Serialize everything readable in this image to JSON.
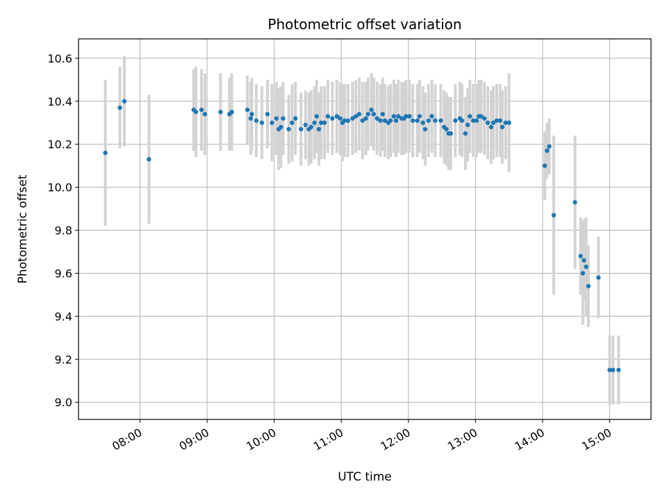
{
  "chart_data": {
    "type": "scatter",
    "title": "Photometric offset variation",
    "xlabel": "UTC time",
    "ylabel": "Photometric offset",
    "x_unit": "hours UTC",
    "xlim": [
      "07:05",
      "15:37"
    ],
    "ylim": [
      8.92,
      10.69
    ],
    "grid": true,
    "x_ticks": [
      "08:00",
      "09:00",
      "10:00",
      "11:00",
      "12:00",
      "13:00",
      "14:00",
      "15:00"
    ],
    "y_ticks": [
      "9.0",
      "9.2",
      "9.4",
      "9.6",
      "9.8",
      "10.0",
      "10.2",
      "10.4",
      "10.6"
    ],
    "colors": {
      "point": "#1f77b4",
      "errorbar": "#d3d3d3",
      "grid": "#b0b0b0"
    },
    "series": [
      {
        "points": [
          {
            "t": "07:29",
            "y": 10.16,
            "err": 0.34
          },
          {
            "t": "07:42",
            "y": 10.37,
            "err": 0.19
          },
          {
            "t": "07:46",
            "y": 10.4,
            "err": 0.21
          },
          {
            "t": "08:08",
            "y": 10.13,
            "err": 0.3
          },
          {
            "t": "08:48",
            "y": 10.36,
            "err": 0.19
          },
          {
            "t": "08:50",
            "y": 10.35,
            "err": 0.21
          },
          {
            "t": "08:55",
            "y": 10.36,
            "err": 0.19
          },
          {
            "t": "08:58",
            "y": 10.34,
            "err": 0.19
          },
          {
            "t": "09:12",
            "y": 10.35,
            "err": 0.18
          },
          {
            "t": "09:20",
            "y": 10.34,
            "err": 0.17
          },
          {
            "t": "09:22",
            "y": 10.35,
            "err": 0.18
          },
          {
            "t": "09:36",
            "y": 10.36,
            "err": 0.16
          },
          {
            "t": "09:39",
            "y": 10.32,
            "err": 0.17
          },
          {
            "t": "09:40",
            "y": 10.34,
            "err": 0.17
          },
          {
            "t": "09:44",
            "y": 10.31,
            "err": 0.17
          },
          {
            "t": "09:49",
            "y": 10.3,
            "err": 0.17
          },
          {
            "t": "09:54",
            "y": 10.34,
            "err": 0.16
          },
          {
            "t": "09:58",
            "y": 10.3,
            "err": 0.18
          },
          {
            "t": "10:02",
            "y": 10.32,
            "err": 0.17
          },
          {
            "t": "10:04",
            "y": 10.27,
            "err": 0.19
          },
          {
            "t": "10:06",
            "y": 10.28,
            "err": 0.19
          },
          {
            "t": "10:08",
            "y": 10.32,
            "err": 0.17
          },
          {
            "t": "10:13",
            "y": 10.27,
            "err": 0.16
          },
          {
            "t": "10:16",
            "y": 10.3,
            "err": 0.18
          },
          {
            "t": "10:19",
            "y": 10.32,
            "err": 0.17
          },
          {
            "t": "10:24",
            "y": 10.27,
            "err": 0.17
          },
          {
            "t": "10:28",
            "y": 10.29,
            "err": 0.16
          },
          {
            "t": "10:31",
            "y": 10.27,
            "err": 0.17
          },
          {
            "t": "10:33",
            "y": 10.28,
            "err": 0.17
          },
          {
            "t": "10:36",
            "y": 10.3,
            "err": 0.17
          },
          {
            "t": "10:38",
            "y": 10.33,
            "err": 0.17
          },
          {
            "t": "10:40",
            "y": 10.27,
            "err": 0.17
          },
          {
            "t": "10:42",
            "y": 10.3,
            "err": 0.17
          },
          {
            "t": "10:45",
            "y": 10.3,
            "err": 0.17
          },
          {
            "t": "10:48",
            "y": 10.33,
            "err": 0.17
          },
          {
            "t": "10:52",
            "y": 10.32,
            "err": 0.17
          },
          {
            "t": "10:56",
            "y": 10.33,
            "err": 0.17
          },
          {
            "t": "10:59",
            "y": 10.32,
            "err": 0.17
          },
          {
            "t": "11:01",
            "y": 10.3,
            "err": 0.18
          },
          {
            "t": "11:03",
            "y": 10.31,
            "err": 0.17
          },
          {
            "t": "11:06",
            "y": 10.31,
            "err": 0.17
          },
          {
            "t": "11:10",
            "y": 10.32,
            "err": 0.17
          },
          {
            "t": "11:13",
            "y": 10.33,
            "err": 0.17
          },
          {
            "t": "11:16",
            "y": 10.34,
            "err": 0.17
          },
          {
            "t": "11:19",
            "y": 10.31,
            "err": 0.18
          },
          {
            "t": "11:22",
            "y": 10.32,
            "err": 0.17
          },
          {
            "t": "11:24",
            "y": 10.34,
            "err": 0.17
          },
          {
            "t": "11:27",
            "y": 10.36,
            "err": 0.17
          },
          {
            "t": "11:29",
            "y": 10.34,
            "err": 0.17
          },
          {
            "t": "11:32",
            "y": 10.32,
            "err": 0.17
          },
          {
            "t": "11:35",
            "y": 10.31,
            "err": 0.17
          },
          {
            "t": "11:37",
            "y": 10.34,
            "err": 0.17
          },
          {
            "t": "11:39",
            "y": 10.31,
            "err": 0.17
          },
          {
            "t": "11:42",
            "y": 10.3,
            "err": 0.17
          },
          {
            "t": "11:44",
            "y": 10.31,
            "err": 0.17
          },
          {
            "t": "11:47",
            "y": 10.33,
            "err": 0.17
          },
          {
            "t": "11:49",
            "y": 10.31,
            "err": 0.17
          },
          {
            "t": "11:51",
            "y": 10.33,
            "err": 0.17
          },
          {
            "t": "11:54",
            "y": 10.32,
            "err": 0.17
          },
          {
            "t": "11:56",
            "y": 10.32,
            "err": 0.17
          },
          {
            "t": "11:58",
            "y": 10.33,
            "err": 0.17
          },
          {
            "t": "12:01",
            "y": 10.33,
            "err": 0.17
          },
          {
            "t": "12:04",
            "y": 10.31,
            "err": 0.17
          },
          {
            "t": "12:08",
            "y": 10.31,
            "err": 0.17
          },
          {
            "t": "12:10",
            "y": 10.33,
            "err": 0.17
          },
          {
            "t": "12:13",
            "y": 10.3,
            "err": 0.17
          },
          {
            "t": "12:15",
            "y": 10.27,
            "err": 0.17
          },
          {
            "t": "12:18",
            "y": 10.31,
            "err": 0.17
          },
          {
            "t": "12:21",
            "y": 10.33,
            "err": 0.17
          },
          {
            "t": "12:24",
            "y": 10.31,
            "err": 0.17
          },
          {
            "t": "12:29",
            "y": 10.31,
            "err": 0.17
          },
          {
            "t": "12:32",
            "y": 10.28,
            "err": 0.17
          },
          {
            "t": "12:34",
            "y": 10.27,
            "err": 0.17
          },
          {
            "t": "12:36",
            "y": 10.25,
            "err": 0.17
          },
          {
            "t": "12:38",
            "y": 10.25,
            "err": 0.17
          },
          {
            "t": "12:42",
            "y": 10.31,
            "err": 0.17
          },
          {
            "t": "12:46",
            "y": 10.32,
            "err": 0.17
          },
          {
            "t": "12:48",
            "y": 10.31,
            "err": 0.17
          },
          {
            "t": "12:51",
            "y": 10.25,
            "err": 0.17
          },
          {
            "t": "12:53",
            "y": 10.29,
            "err": 0.17
          },
          {
            "t": "12:55",
            "y": 10.33,
            "err": 0.17
          },
          {
            "t": "12:58",
            "y": 10.31,
            "err": 0.17
          },
          {
            "t": "13:01",
            "y": 10.31,
            "err": 0.17
          },
          {
            "t": "13:03",
            "y": 10.33,
            "err": 0.17
          },
          {
            "t": "13:05",
            "y": 10.33,
            "err": 0.17
          },
          {
            "t": "13:08",
            "y": 10.32,
            "err": 0.17
          },
          {
            "t": "13:11",
            "y": 10.3,
            "err": 0.17
          },
          {
            "t": "13:14",
            "y": 10.28,
            "err": 0.17
          },
          {
            "t": "13:16",
            "y": 10.3,
            "err": 0.17
          },
          {
            "t": "13:19",
            "y": 10.31,
            "err": 0.17
          },
          {
            "t": "13:22",
            "y": 10.31,
            "err": 0.17
          },
          {
            "t": "13:24",
            "y": 10.28,
            "err": 0.17
          },
          {
            "t": "13:27",
            "y": 10.3,
            "err": 0.17
          },
          {
            "t": "13:30",
            "y": 10.3,
            "err": 0.23
          },
          {
            "t": "14:02",
            "y": 10.1,
            "err": 0.16
          },
          {
            "t": "14:04",
            "y": 10.17,
            "err": 0.13
          },
          {
            "t": "14:06",
            "y": 10.19,
            "err": 0.13
          },
          {
            "t": "14:10",
            "y": 9.87,
            "err": 0.37
          },
          {
            "t": "14:29",
            "y": 9.93,
            "err": 0.31
          },
          {
            "t": "14:34",
            "y": 9.68,
            "err": 0.18
          },
          {
            "t": "14:36",
            "y": 9.6,
            "err": 0.24
          },
          {
            "t": "14:37",
            "y": 9.66,
            "err": 0.19
          },
          {
            "t": "14:39",
            "y": 9.63,
            "err": 0.23
          },
          {
            "t": "14:41",
            "y": 9.54,
            "err": 0.19
          },
          {
            "t": "14:50",
            "y": 9.58,
            "err": 0.19
          },
          {
            "t": "15:00",
            "y": 9.15,
            "err": 0.16
          },
          {
            "t": "15:03",
            "y": 9.15,
            "err": 0.16
          },
          {
            "t": "15:08",
            "y": 9.15,
            "err": 0.16
          }
        ]
      }
    ]
  }
}
